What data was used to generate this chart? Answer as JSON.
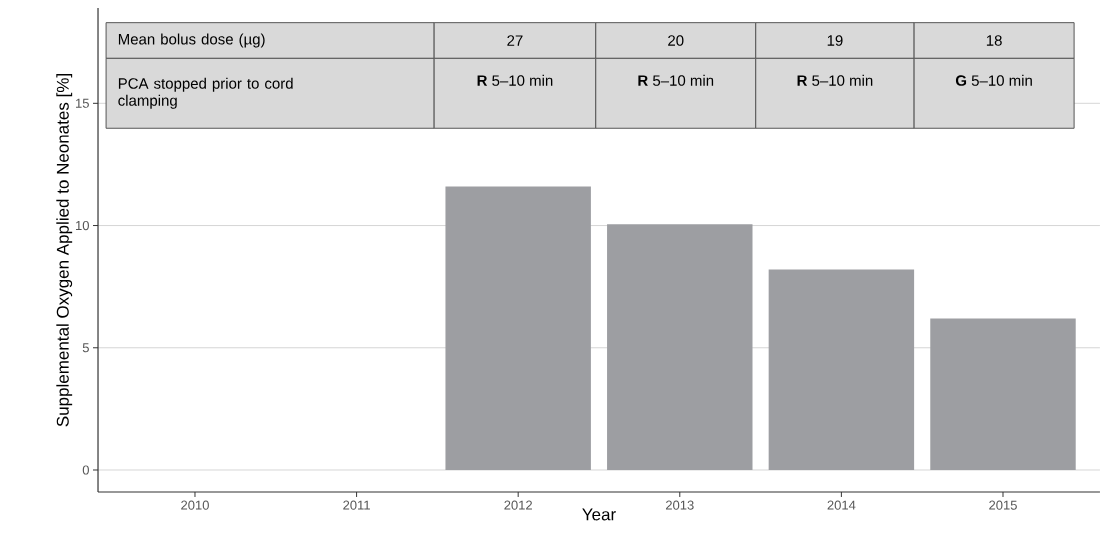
{
  "chart_data": {
    "type": "bar",
    "xlabel": "Year",
    "ylabel": "Supplemental Oxygen Applied to Neonates [%]",
    "categories": [
      "2010",
      "2011",
      "2012",
      "2013",
      "2014",
      "2015"
    ],
    "values": [
      null,
      null,
      11.6,
      10.05,
      8.2,
      6.2
    ],
    "color": "#9d9ea2",
    "ylim": [
      -0.9,
      18.9
    ],
    "yticks": [
      0,
      5,
      10,
      15
    ],
    "grid": "y",
    "annotations": [
      "Mean bolus dose (µg)",
      "27",
      "20",
      "19",
      "18",
      "PCA stopped prior to cord clamping",
      "**R** 5–10 min",
      "**R** 5–10 min",
      "**R** 5–10 min",
      "**G** 5–10 min"
    ]
  }
}
